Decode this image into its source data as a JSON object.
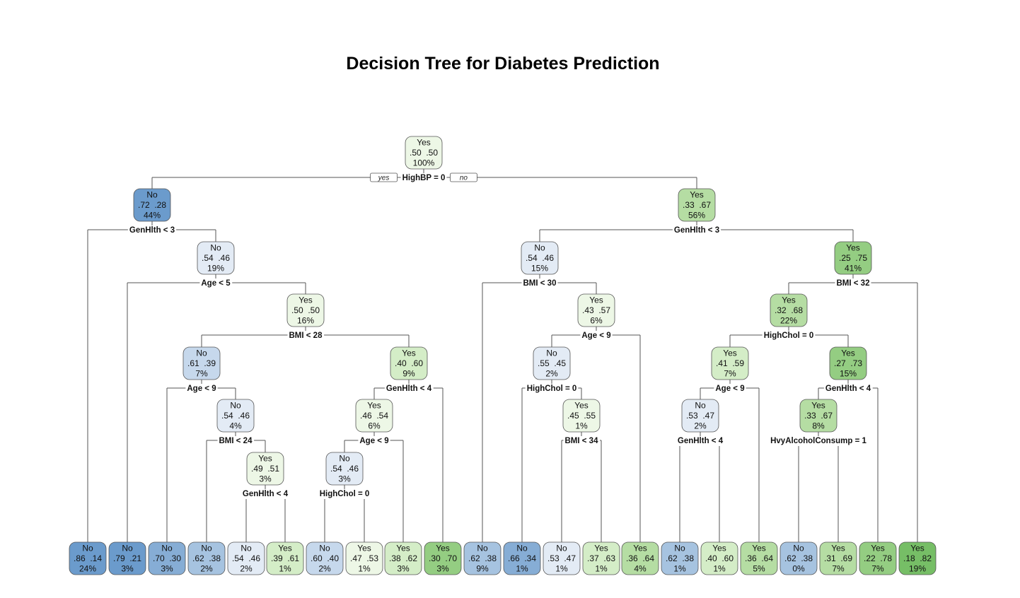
{
  "title": "Decision Tree for Diabetes Prediction",
  "branch_tags": {
    "left": "yes",
    "right": "no"
  },
  "colors": {
    "No": [
      "#e3ebf5",
      "#c6d8ec",
      "#a6c3e0",
      "#86add5",
      "#6b9bcc"
    ],
    "Yes": [
      "#edf7e6",
      "#d4edc7",
      "#b5dda3",
      "#94cd82",
      "#76be66"
    ]
  },
  "nodes": [
    {
      "id": "n1",
      "label": "Yes",
      "probs": ".50  .50",
      "pct": "100%",
      "shade": 0,
      "split": "HighBP = 0"
    },
    {
      "id": "n2",
      "label": "No",
      "probs": ".72  .28",
      "pct": "44%",
      "shade": 4,
      "split": "GenHlth < 3"
    },
    {
      "id": "n3",
      "label": "Yes",
      "probs": ".33  .67",
      "pct": "56%",
      "shade": 2,
      "split": "GenHlth < 3"
    },
    {
      "id": "n5",
      "label": "No",
      "probs": ".54  .46",
      "pct": "19%",
      "shade": 0,
      "split": "Age < 5"
    },
    {
      "id": "n11",
      "label": "Yes",
      "probs": ".50  .50",
      "pct": "16%",
      "shade": 0,
      "split": "BMI < 28"
    },
    {
      "id": "n22",
      "label": "No",
      "probs": ".61  .39",
      "pct": "7%",
      "shade": 1,
      "split": "Age < 9"
    },
    {
      "id": "n45",
      "label": "No",
      "probs": ".54  .46",
      "pct": "4%",
      "shade": 0,
      "split": "BMI < 24"
    },
    {
      "id": "n91",
      "label": "Yes",
      "probs": ".49  .51",
      "pct": "3%",
      "shade": 0,
      "split": "GenHlth < 4"
    },
    {
      "id": "n23",
      "label": "Yes",
      "probs": ".40  .60",
      "pct": "9%",
      "shade": 1,
      "split": "GenHlth < 4"
    },
    {
      "id": "n46",
      "label": "Yes",
      "probs": ".46  .54",
      "pct": "6%",
      "shade": 0,
      "split": "Age < 9"
    },
    {
      "id": "n92",
      "label": "No",
      "probs": ".54  .46",
      "pct": "3%",
      "shade": 0,
      "split": "HighChol = 0"
    },
    {
      "id": "n6",
      "label": "No",
      "probs": ".54  .46",
      "pct": "15%",
      "shade": 0,
      "split": "BMI < 30"
    },
    {
      "id": "n13",
      "label": "Yes",
      "probs": ".43  .57",
      "pct": "6%",
      "shade": 0,
      "split": "Age < 9"
    },
    {
      "id": "n26",
      "label": "No",
      "probs": ".55  .45",
      "pct": "2%",
      "shade": 0,
      "split": "HighChol = 0"
    },
    {
      "id": "n53",
      "label": "Yes",
      "probs": ".45  .55",
      "pct": "1%",
      "shade": 0,
      "split": "BMI < 34"
    },
    {
      "id": "n7",
      "label": "Yes",
      "probs": ".25  .75",
      "pct": "41%",
      "shade": 3,
      "split": "BMI < 32"
    },
    {
      "id": "n14",
      "label": "Yes",
      "probs": ".32  .68",
      "pct": "22%",
      "shade": 2,
      "split": "HighChol = 0"
    },
    {
      "id": "n28",
      "label": "Yes",
      "probs": ".41  .59",
      "pct": "7%",
      "shade": 1,
      "split": "Age < 9"
    },
    {
      "id": "n56",
      "label": "No",
      "probs": ".53  .47",
      "pct": "2%",
      "shade": 0,
      "split": "GenHlth < 4"
    },
    {
      "id": "n29",
      "label": "Yes",
      "probs": ".27  .73",
      "pct": "15%",
      "shade": 3,
      "split": "GenHlth < 4"
    },
    {
      "id": "n58",
      "label": "Yes",
      "probs": ".33  .67",
      "pct": "8%",
      "shade": 2,
      "split": "HvyAlcoholConsump = 1"
    }
  ],
  "leaves": [
    {
      "id": "L1",
      "label": "No",
      "probs": ".86  .14",
      "pct": "24%",
      "shade": 4
    },
    {
      "id": "L2",
      "label": "No",
      "probs": ".79  .21",
      "pct": "3%",
      "shade": 4
    },
    {
      "id": "L3",
      "label": "No",
      "probs": ".70  .30",
      "pct": "3%",
      "shade": 3
    },
    {
      "id": "L4",
      "label": "No",
      "probs": ".62  .38",
      "pct": "2%",
      "shade": 2
    },
    {
      "id": "L5",
      "label": "No",
      "probs": ".54  .46",
      "pct": "2%",
      "shade": 0
    },
    {
      "id": "L6",
      "label": "Yes",
      "probs": ".39  .61",
      "pct": "1%",
      "shade": 1
    },
    {
      "id": "L7",
      "label": "No",
      "probs": ".60  .40",
      "pct": "2%",
      "shade": 1
    },
    {
      "id": "L8",
      "label": "Yes",
      "probs": ".47  .53",
      "pct": "1%",
      "shade": 0
    },
    {
      "id": "L9",
      "label": "Yes",
      "probs": ".38  .62",
      "pct": "3%",
      "shade": 1
    },
    {
      "id": "L10",
      "label": "Yes",
      "probs": ".30  .70",
      "pct": "3%",
      "shade": 3
    },
    {
      "id": "L11",
      "label": "No",
      "probs": ".62  .38",
      "pct": "9%",
      "shade": 2
    },
    {
      "id": "L12",
      "label": "No",
      "probs": ".66  .34",
      "pct": "1%",
      "shade": 3
    },
    {
      "id": "L13",
      "label": "No",
      "probs": ".53  .47",
      "pct": "1%",
      "shade": 0
    },
    {
      "id": "L14",
      "label": "Yes",
      "probs": ".37  .63",
      "pct": "1%",
      "shade": 1
    },
    {
      "id": "L15",
      "label": "Yes",
      "probs": ".36  .64",
      "pct": "4%",
      "shade": 2
    },
    {
      "id": "L16",
      "label": "No",
      "probs": ".62  .38",
      "pct": "1%",
      "shade": 2
    },
    {
      "id": "L17",
      "label": "Yes",
      "probs": ".40  .60",
      "pct": "1%",
      "shade": 1
    },
    {
      "id": "L18",
      "label": "Yes",
      "probs": ".36  .64",
      "pct": "5%",
      "shade": 2
    },
    {
      "id": "L19",
      "label": "No",
      "probs": ".62  .38",
      "pct": "0%",
      "shade": 2
    },
    {
      "id": "L20",
      "label": "Yes",
      "probs": ".31  .69",
      "pct": "7%",
      "shade": 2
    },
    {
      "id": "L21",
      "label": "Yes",
      "probs": ".22  .78",
      "pct": "7%",
      "shade": 3
    },
    {
      "id": "L22",
      "label": "Yes",
      "probs": ".18  .82",
      "pct": "19%",
      "shade": 4
    }
  ],
  "edges": [
    [
      "n1",
      "n2"
    ],
    [
      "n1",
      "n3"
    ],
    [
      "n2",
      "L1"
    ],
    [
      "n2",
      "n5"
    ],
    [
      "n5",
      "L2"
    ],
    [
      "n5",
      "n11"
    ],
    [
      "n11",
      "n22"
    ],
    [
      "n11",
      "n23"
    ],
    [
      "n22",
      "L3"
    ],
    [
      "n22",
      "n45"
    ],
    [
      "n45",
      "L4"
    ],
    [
      "n45",
      "n91"
    ],
    [
      "n91",
      "L5"
    ],
    [
      "n91",
      "L6"
    ],
    [
      "n23",
      "n46"
    ],
    [
      "n23",
      "L10"
    ],
    [
      "n46",
      "n92"
    ],
    [
      "n46",
      "L9"
    ],
    [
      "n92",
      "L7"
    ],
    [
      "n92",
      "L8"
    ],
    [
      "n3",
      "n6"
    ],
    [
      "n3",
      "n7"
    ],
    [
      "n6",
      "L11"
    ],
    [
      "n6",
      "n13"
    ],
    [
      "n13",
      "n26"
    ],
    [
      "n13",
      "L15"
    ],
    [
      "n26",
      "L12"
    ],
    [
      "n26",
      "n53"
    ],
    [
      "n53",
      "L13"
    ],
    [
      "n53",
      "L14"
    ],
    [
      "n7",
      "n14"
    ],
    [
      "n7",
      "L22"
    ],
    [
      "n14",
      "n28"
    ],
    [
      "n14",
      "n29"
    ],
    [
      "n28",
      "n56"
    ],
    [
      "n28",
      "L18"
    ],
    [
      "n56",
      "L16"
    ],
    [
      "n56",
      "L17"
    ],
    [
      "n29",
      "n58"
    ],
    [
      "n29",
      "L21"
    ],
    [
      "n58",
      "L19"
    ],
    [
      "n58",
      "L20"
    ]
  ]
}
